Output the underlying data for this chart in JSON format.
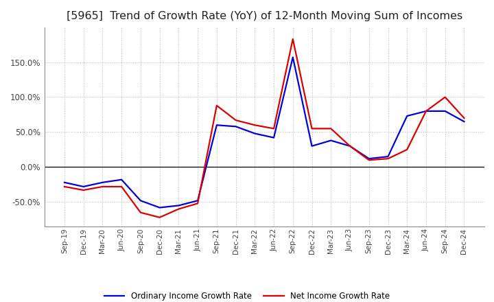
{
  "title": "[5965]  Trend of Growth Rate (YoY) of 12-Month Moving Sum of Incomes",
  "title_fontsize": 11.5,
  "background_color": "#ffffff",
  "grid_color": "#bbbbbb",
  "x_labels": [
    "Sep-19",
    "Dec-19",
    "Mar-20",
    "Jun-20",
    "Sep-20",
    "Dec-20",
    "Mar-21",
    "Jun-21",
    "Sep-21",
    "Dec-21",
    "Mar-22",
    "Jun-22",
    "Sep-22",
    "Dec-22",
    "Mar-23",
    "Jun-23",
    "Sep-23",
    "Dec-23",
    "Mar-24",
    "Jun-24",
    "Sep-24",
    "Dec-24"
  ],
  "ordinary_income": [
    -22,
    -28,
    -22,
    -18,
    -48,
    -58,
    -55,
    -48,
    60,
    58,
    48,
    42,
    157,
    30,
    38,
    30,
    12,
    15,
    73,
    80,
    80,
    65
  ],
  "net_income": [
    -28,
    -33,
    -28,
    -28,
    -65,
    -72,
    -60,
    -52,
    88,
    67,
    60,
    55,
    183,
    55,
    55,
    30,
    10,
    12,
    25,
    80,
    100,
    70
  ],
  "ordinary_color": "#0000dd",
  "net_color": "#dd0000",
  "ylim": [
    -85,
    200
  ],
  "yticks": [
    -50.0,
    0.0,
    50.0,
    100.0,
    150.0
  ],
  "legend_ordinary": "Ordinary Income Growth Rate",
  "legend_net": "Net Income Growth Rate"
}
